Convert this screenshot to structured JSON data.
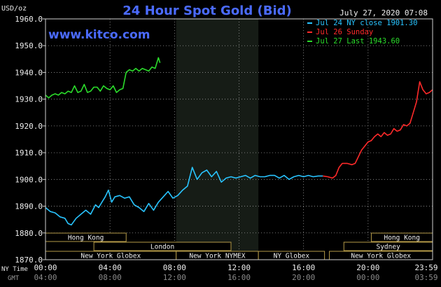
{
  "chart_data": {
    "type": "line",
    "title": "24 Hour Spot Gold (Bid)",
    "website": "www.kitco.com",
    "timestamp": "July 27, 2020 07:08",
    "ylabel": "USD/oz",
    "ylim": [
      1870,
      1960
    ],
    "yticks": [
      "1960.0",
      "1950.0",
      "1940.0",
      "1930.0",
      "1920.0",
      "1910.0",
      "1900.0",
      "1890.0",
      "1880.0",
      "1870.0"
    ],
    "xticks_ny": [
      "00:00",
      "04:00",
      "08:00",
      "12:00",
      "16:00",
      "20:00",
      "23:59"
    ],
    "xticks_gmt": [
      "04:00",
      "08:00",
      "12:00",
      "16:00",
      "20:00",
      "00:00",
      "03:59"
    ],
    "row_label_ny": "NY Time",
    "row_label_gmt": "GMT",
    "grid": true,
    "legend_position": "top-right",
    "legend": [
      {
        "label": "Jul 24 NY close 1901.30",
        "color": "#29c4ff"
      },
      {
        "label": "Jul 26 Sunday",
        "color": "#ff2a2a"
      },
      {
        "label": "Jul 27 Last 1943.60",
        "color": "#2bdc2b"
      }
    ],
    "closed_session": {
      "x_from": 8.1,
      "x_to": 13.2
    },
    "sessions": [
      {
        "label": "Hong Kong",
        "row": 1,
        "x_from": 0,
        "x_to": 5.0
      },
      {
        "label": "London",
        "row": 2,
        "x_from": 3.0,
        "x_to": 11.5
      },
      {
        "label": "New York Globex",
        "row": 3,
        "x_from": 0,
        "x_to": 8.1
      },
      {
        "label": "New York NYMEX",
        "row": 3,
        "x_from": 8.1,
        "x_to": 13.2
      },
      {
        "label": "NY Globex",
        "row": 3,
        "x_from": 13.2,
        "x_to": 17.3
      },
      {
        "label": "Hong Kong",
        "row": 1,
        "x_from": 20.2,
        "x_to": 24.0
      },
      {
        "label": "Sydney",
        "row": 2,
        "x_from": 18.5,
        "x_to": 24.0
      },
      {
        "label": "New York Globex",
        "row": 3,
        "x_from": 17.6,
        "x_to": 24.0
      }
    ],
    "series": [
      {
        "name": "Jul 24 NY close 1901.30",
        "color": "#29c4ff",
        "x": [
          0,
          0.3,
          0.6,
          0.9,
          1.2,
          1.4,
          1.6,
          1.9,
          2.2,
          2.5,
          2.8,
          3.1,
          3.3,
          3.5,
          3.7,
          3.9,
          4.1,
          4.3,
          4.6,
          4.9,
          5.2,
          5.5,
          5.8,
          6.1,
          6.4,
          6.7,
          7.0,
          7.3,
          7.6,
          7.9,
          8.2,
          8.5,
          8.8,
          9.1,
          9.4,
          9.7,
          10.0,
          10.3,
          10.6,
          10.9,
          11.2,
          11.5,
          11.8,
          12.1,
          12.4,
          12.7,
          13.0,
          13.3,
          13.6,
          13.9,
          14.2,
          14.5,
          14.8,
          15.1,
          15.4,
          15.7,
          16.0,
          16.3,
          16.6,
          16.9,
          17.2
        ],
        "y": [
          1889.5,
          1888.0,
          1887.5,
          1886.0,
          1885.5,
          1883.5,
          1883.0,
          1885.5,
          1887.0,
          1888.5,
          1887.0,
          1890.5,
          1889.5,
          1891.5,
          1893.5,
          1896.0,
          1891.5,
          1893.5,
          1894.0,
          1893.0,
          1893.5,
          1890.5,
          1889.5,
          1888.0,
          1891.0,
          1888.5,
          1891.5,
          1893.5,
          1895.5,
          1893.0,
          1894.0,
          1896.0,
          1897.5,
          1904.5,
          1900.0,
          1902.5,
          1903.5,
          1901.0,
          1903.0,
          1899.0,
          1900.5,
          1901.0,
          1900.5,
          1901.0,
          1901.5,
          1900.5,
          1901.5,
          1901.0,
          1901.0,
          1901.5,
          1901.5,
          1900.5,
          1901.5,
          1900.0,
          1901.0,
          1901.5,
          1901.0,
          1901.5,
          1901.0,
          1901.3,
          1901.3
        ]
      },
      {
        "name": "Jul 26 Sunday",
        "color": "#ff2a2a",
        "x": [
          17.2,
          17.5,
          17.8,
          18.0,
          18.2,
          18.4,
          18.7,
          19.0,
          19.2,
          19.4,
          19.6,
          19.8,
          20.0,
          20.2,
          20.4,
          20.6,
          20.8,
          21.0,
          21.2,
          21.4,
          21.6,
          21.8,
          22.0,
          22.2,
          22.4,
          22.6,
          22.8,
          23.0,
          23.2,
          23.4,
          23.6,
          23.8,
          23.99
        ],
        "y": [
          1901.3,
          1901.0,
          1900.5,
          1901.5,
          1904.5,
          1906.0,
          1906.0,
          1905.5,
          1906.0,
          1908.5,
          1911.0,
          1912.5,
          1914.0,
          1914.5,
          1916.0,
          1917.0,
          1916.0,
          1917.5,
          1916.5,
          1917.0,
          1919.0,
          1918.0,
          1918.5,
          1920.5,
          1920.0,
          1921.0,
          1925.0,
          1929.0,
          1936.5,
          1933.5,
          1932.0,
          1932.5,
          1933.5
        ]
      },
      {
        "name": "Jul 27 Last 1943.60",
        "color": "#2bdc2b",
        "x": [
          0,
          0.2,
          0.4,
          0.6,
          0.8,
          1.0,
          1.2,
          1.4,
          1.6,
          1.8,
          2.0,
          2.2,
          2.4,
          2.6,
          2.8,
          3.0,
          3.2,
          3.4,
          3.6,
          3.8,
          4.0,
          4.2,
          4.4,
          4.6,
          4.8,
          5.0,
          5.2,
          5.4,
          5.6,
          5.8,
          6.0,
          6.2,
          6.4,
          6.6,
          6.8,
          7.0,
          7.1
        ],
        "y": [
          1931.5,
          1930.5,
          1931.5,
          1932.0,
          1931.5,
          1932.5,
          1932.0,
          1933.0,
          1932.5,
          1935.0,
          1932.5,
          1933.0,
          1935.5,
          1932.5,
          1933.0,
          1934.5,
          1934.5,
          1933.0,
          1935.0,
          1934.0,
          1933.5,
          1935.0,
          1932.5,
          1933.5,
          1934.0,
          1940.0,
          1941.0,
          1940.5,
          1941.5,
          1940.5,
          1941.5,
          1941.0,
          1940.5,
          1942.0,
          1941.5,
          1945.5,
          1943.6
        ]
      }
    ]
  }
}
